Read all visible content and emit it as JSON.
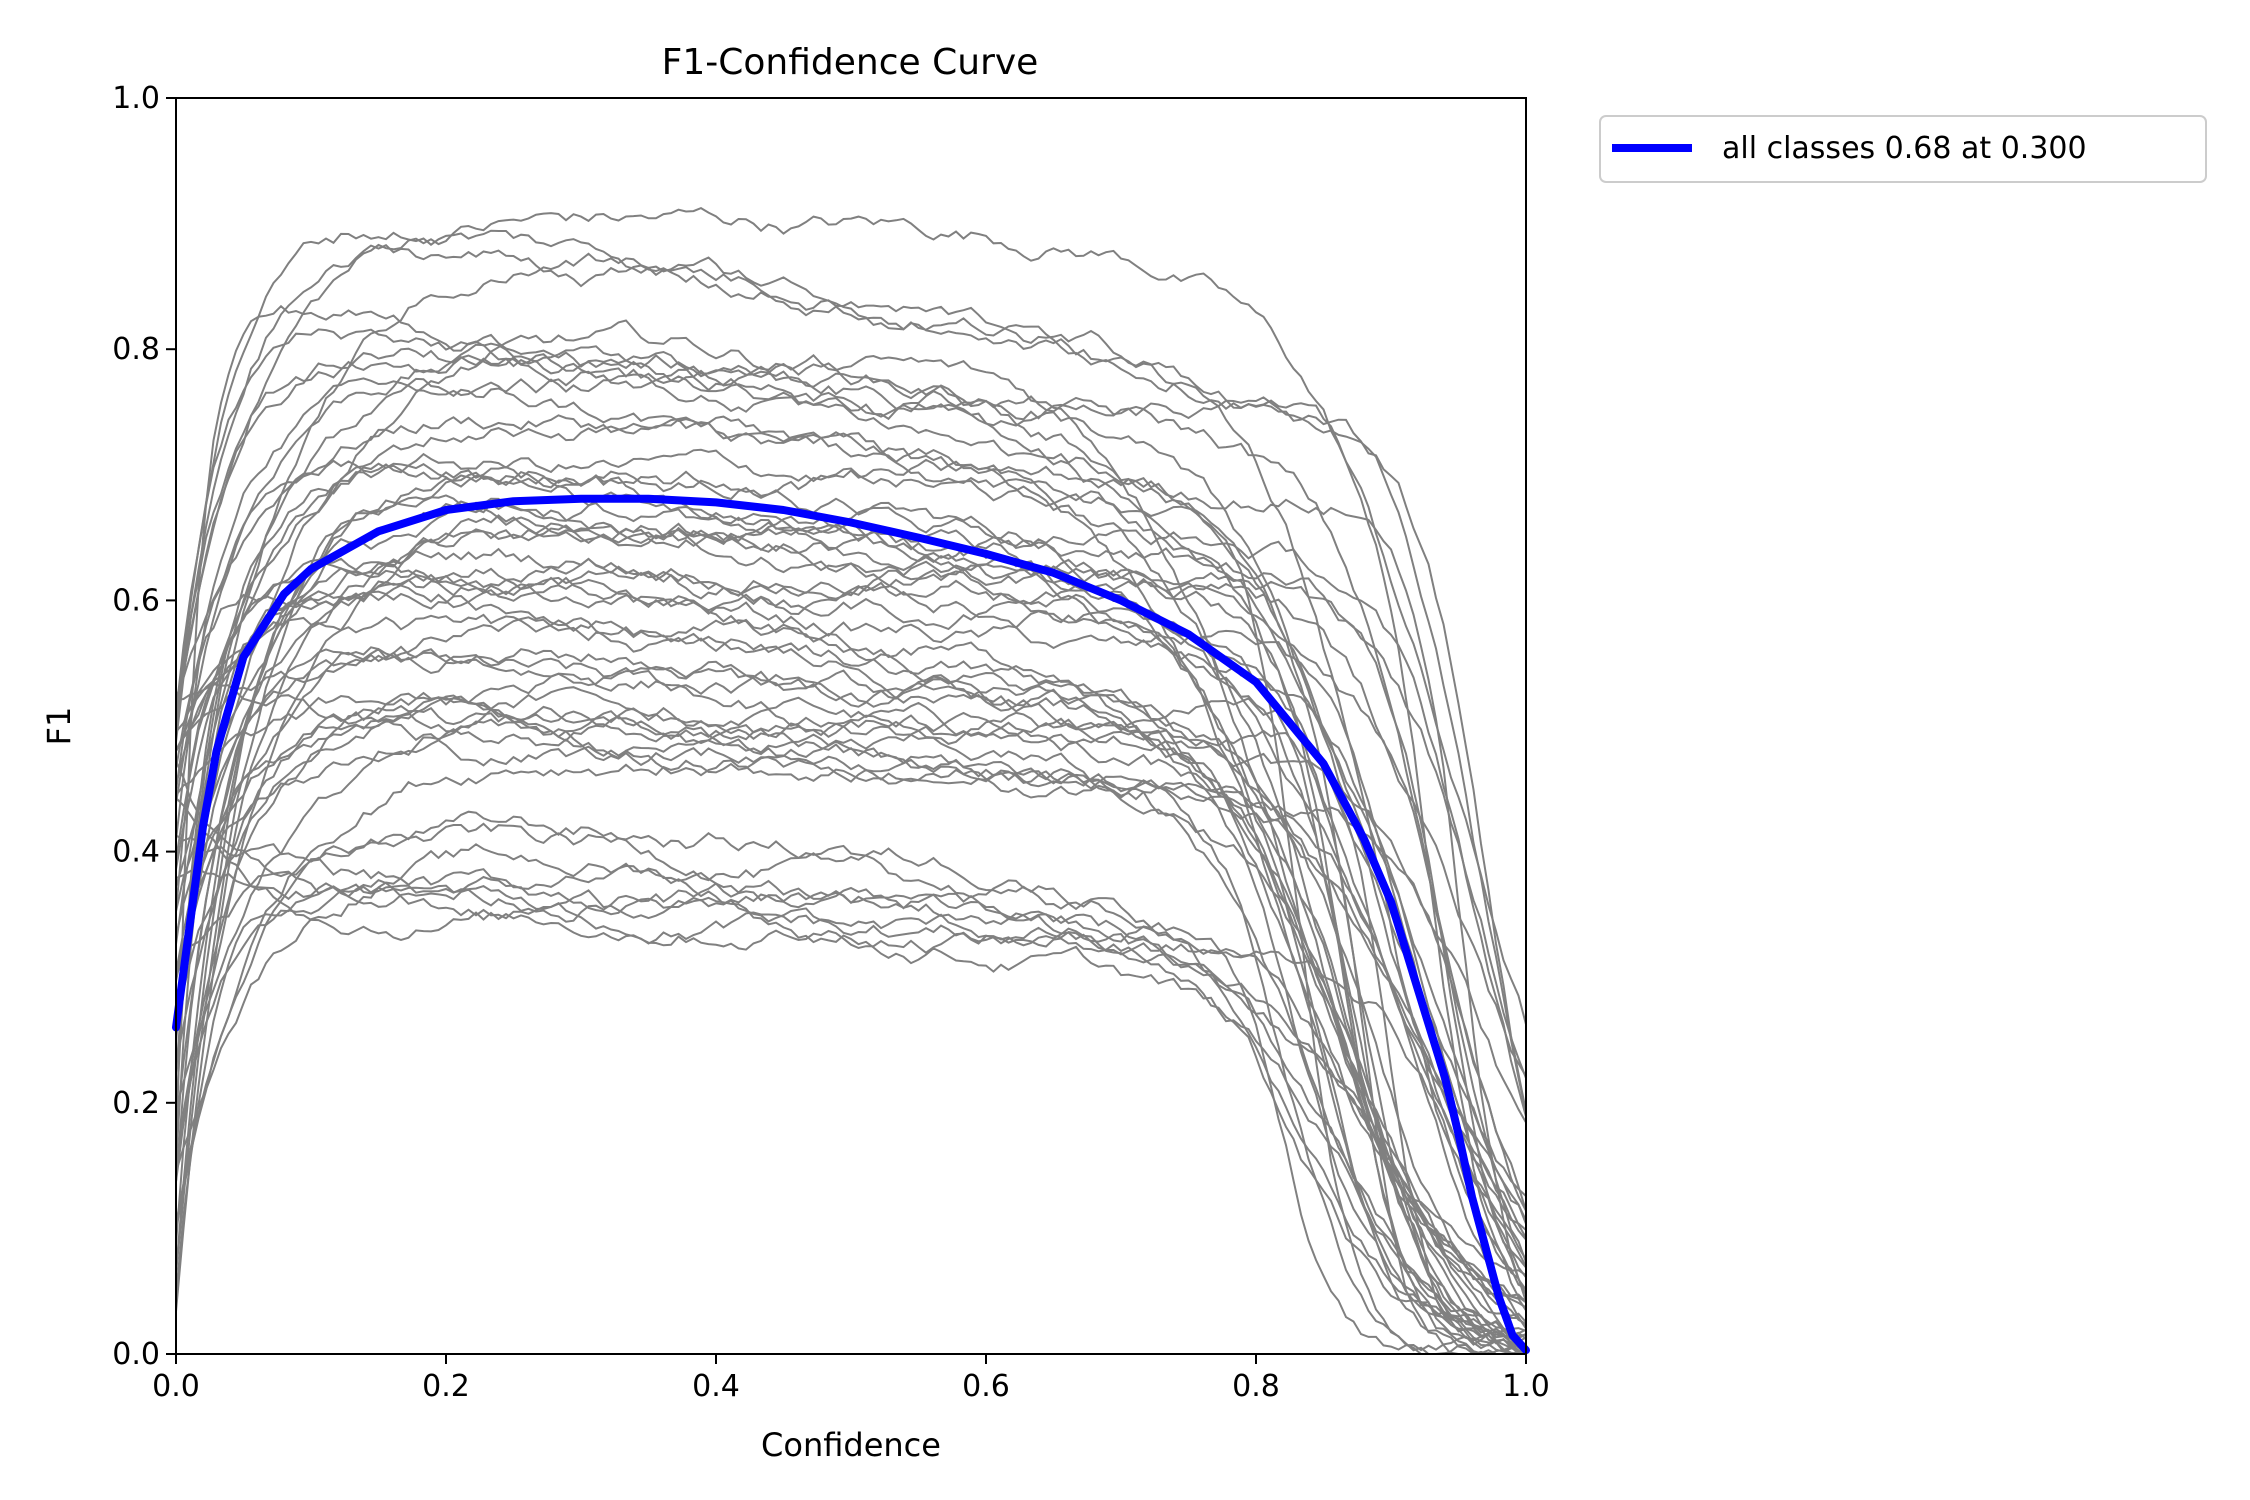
{
  "chart_data": {
    "type": "line",
    "title": "F1-Confidence Curve",
    "xlabel": "Confidence",
    "ylabel": "F1",
    "xlim": [
      0.0,
      1.0
    ],
    "ylim": [
      0.0,
      1.0
    ],
    "xticks": [
      "0.0",
      "0.2",
      "0.4",
      "0.6",
      "0.8",
      "1.0"
    ],
    "yticks": [
      "0.0",
      "0.2",
      "0.4",
      "0.6",
      "0.8",
      "1.0"
    ],
    "grid": false,
    "legend_position": "outside-top-right",
    "colors": {
      "class_curve": "#808080",
      "all_classes": "#0000ff"
    },
    "per_class_series_count": 56,
    "series": [
      {
        "name": "all classes 0.68 at 0.300",
        "x": [
          0.0,
          0.01,
          0.02,
          0.03,
          0.05,
          0.08,
          0.1,
          0.15,
          0.2,
          0.25,
          0.3,
          0.35,
          0.4,
          0.45,
          0.5,
          0.55,
          0.6,
          0.65,
          0.7,
          0.75,
          0.8,
          0.85,
          0.88,
          0.9,
          0.92,
          0.94,
          0.95,
          0.96,
          0.97,
          0.98,
          0.99,
          1.0
        ],
        "y": [
          0.26,
          0.34,
          0.42,
          0.48,
          0.555,
          0.605,
          0.625,
          0.655,
          0.672,
          0.679,
          0.681,
          0.681,
          0.678,
          0.672,
          0.662,
          0.65,
          0.637,
          0.622,
          0.6,
          0.573,
          0.535,
          0.47,
          0.41,
          0.36,
          0.29,
          0.22,
          0.175,
          0.125,
          0.085,
          0.045,
          0.015,
          0.003
        ]
      }
    ]
  }
}
